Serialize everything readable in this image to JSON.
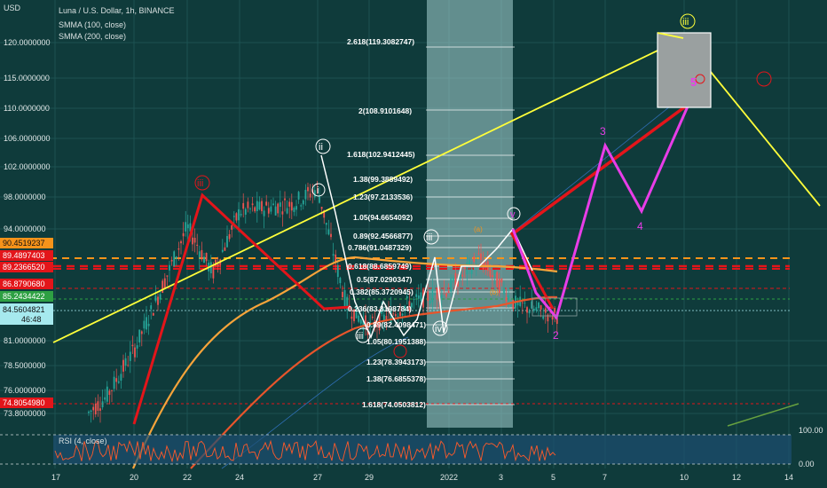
{
  "header": {
    "currency": "USD",
    "symbol_line": "Luna / U.S. Dollar, 1h, BINANCE",
    "indicator_1": "SMMA (100, close)",
    "indicator_2": "SMMA (200, close)"
  },
  "rsi": {
    "label": "RSI (4, close)",
    "levels": [
      "100.00",
      "0.00"
    ]
  },
  "price_axis": {
    "ticks": [
      "120.0000000",
      "115.0000000",
      "110.0000000",
      "106.0000000",
      "102.0000000",
      "98.0000000",
      "94.0000000",
      "81.0000000",
      "78.5000000",
      "76.0000000",
      "73.8000000"
    ],
    "badges": [
      {
        "text": "90.4519237",
        "color": "#f7931a"
      },
      {
        "text": "89.4897403",
        "color": "#e3151a"
      },
      {
        "text": "89.2366520",
        "color": "#e3151a"
      },
      {
        "text": "86.8790680",
        "color": "#e3151a"
      },
      {
        "text": "85.2434422",
        "color": "#2ea043"
      },
      {
        "text": "84.5604821",
        "color": "#a6e9ee"
      },
      {
        "text": "46:48",
        "color": "#a6e9ee"
      },
      {
        "text": "74.8054980",
        "color": "#e3151a"
      }
    ]
  },
  "time_axis": {
    "ticks": [
      "17",
      "20",
      "22",
      "24",
      "27",
      "29",
      "2022",
      "3",
      "5",
      "7",
      "10",
      "12",
      "14"
    ]
  },
  "fib_labels": [
    "2.618(119.3082747)",
    "2(108.9101648)",
    "1.618(102.9412445)",
    "1.38(99.3889492)",
    "1.23(97.2133536)",
    "1.05(94.6654092)",
    "0.89(92.4566877)",
    "0.786(91.0487329)",
    "0.618(88.6859749)",
    "0.5(87.0290347)",
    "0.382(85.3720945)",
    "0.236(83.3198784)",
    "0.89(82.4098471)",
    "1.05(80.1951388)",
    "1.23(78.3943173)",
    "1.38(76.6855378)",
    "1.618(74.0503812)"
  ],
  "wave_labels": {
    "projection": [
      "1",
      "2",
      "3",
      "4",
      "5"
    ],
    "circled": [
      "ii",
      "i",
      "iii",
      "iv",
      "v",
      "iii",
      "iii"
    ],
    "ribbon": [
      "(a)",
      "(b)"
    ]
  },
  "chart_data": {
    "type": "line",
    "title": "Luna / U.S. Dollar, 1h, BINANCE",
    "ylabel": "USD",
    "ylim": [
      70,
      124
    ],
    "series": [
      {
        "name": "SMMA (100, close)",
        "color": "#f7a43a"
      },
      {
        "name": "SMMA (200, close)",
        "color": "#e8552b"
      }
    ],
    "price_path": [
      {
        "x": "17",
        "y": 68
      },
      {
        "x": "19",
        "y": 74
      },
      {
        "x": "20",
        "y": 80
      },
      {
        "x": "21",
        "y": 88
      },
      {
        "x": "22",
        "y": 96
      },
      {
        "x": "23",
        "y": 90
      },
      {
        "x": "24",
        "y": 98
      },
      {
        "x": "26",
        "y": 99
      },
      {
        "x": "27",
        "y": 101
      },
      {
        "x": "28",
        "y": 86
      },
      {
        "x": "29",
        "y": 83
      },
      {
        "x": "31",
        "y": 86
      },
      {
        "x": "2022",
        "y": 88
      },
      {
        "x": "3",
        "y": 92
      },
      {
        "x": "4",
        "y": 86
      },
      {
        "x": "5",
        "y": 84.6
      }
    ],
    "elliott_projection": [
      {
        "label": "1",
        "x": "3",
        "y": 93
      },
      {
        "label": "2",
        "x": "5",
        "y": 84.2
      },
      {
        "label": "3",
        "x": "7",
        "y": 104
      },
      {
        "label": "4",
        "x": "9",
        "y": 96
      },
      {
        "label": "5",
        "x": "10",
        "y": 111
      }
    ],
    "trendline": [
      {
        "x": "17",
        "y": 81
      },
      {
        "x": "10",
        "y": 121
      }
    ],
    "rsi_levels": [
      0,
      100
    ]
  }
}
